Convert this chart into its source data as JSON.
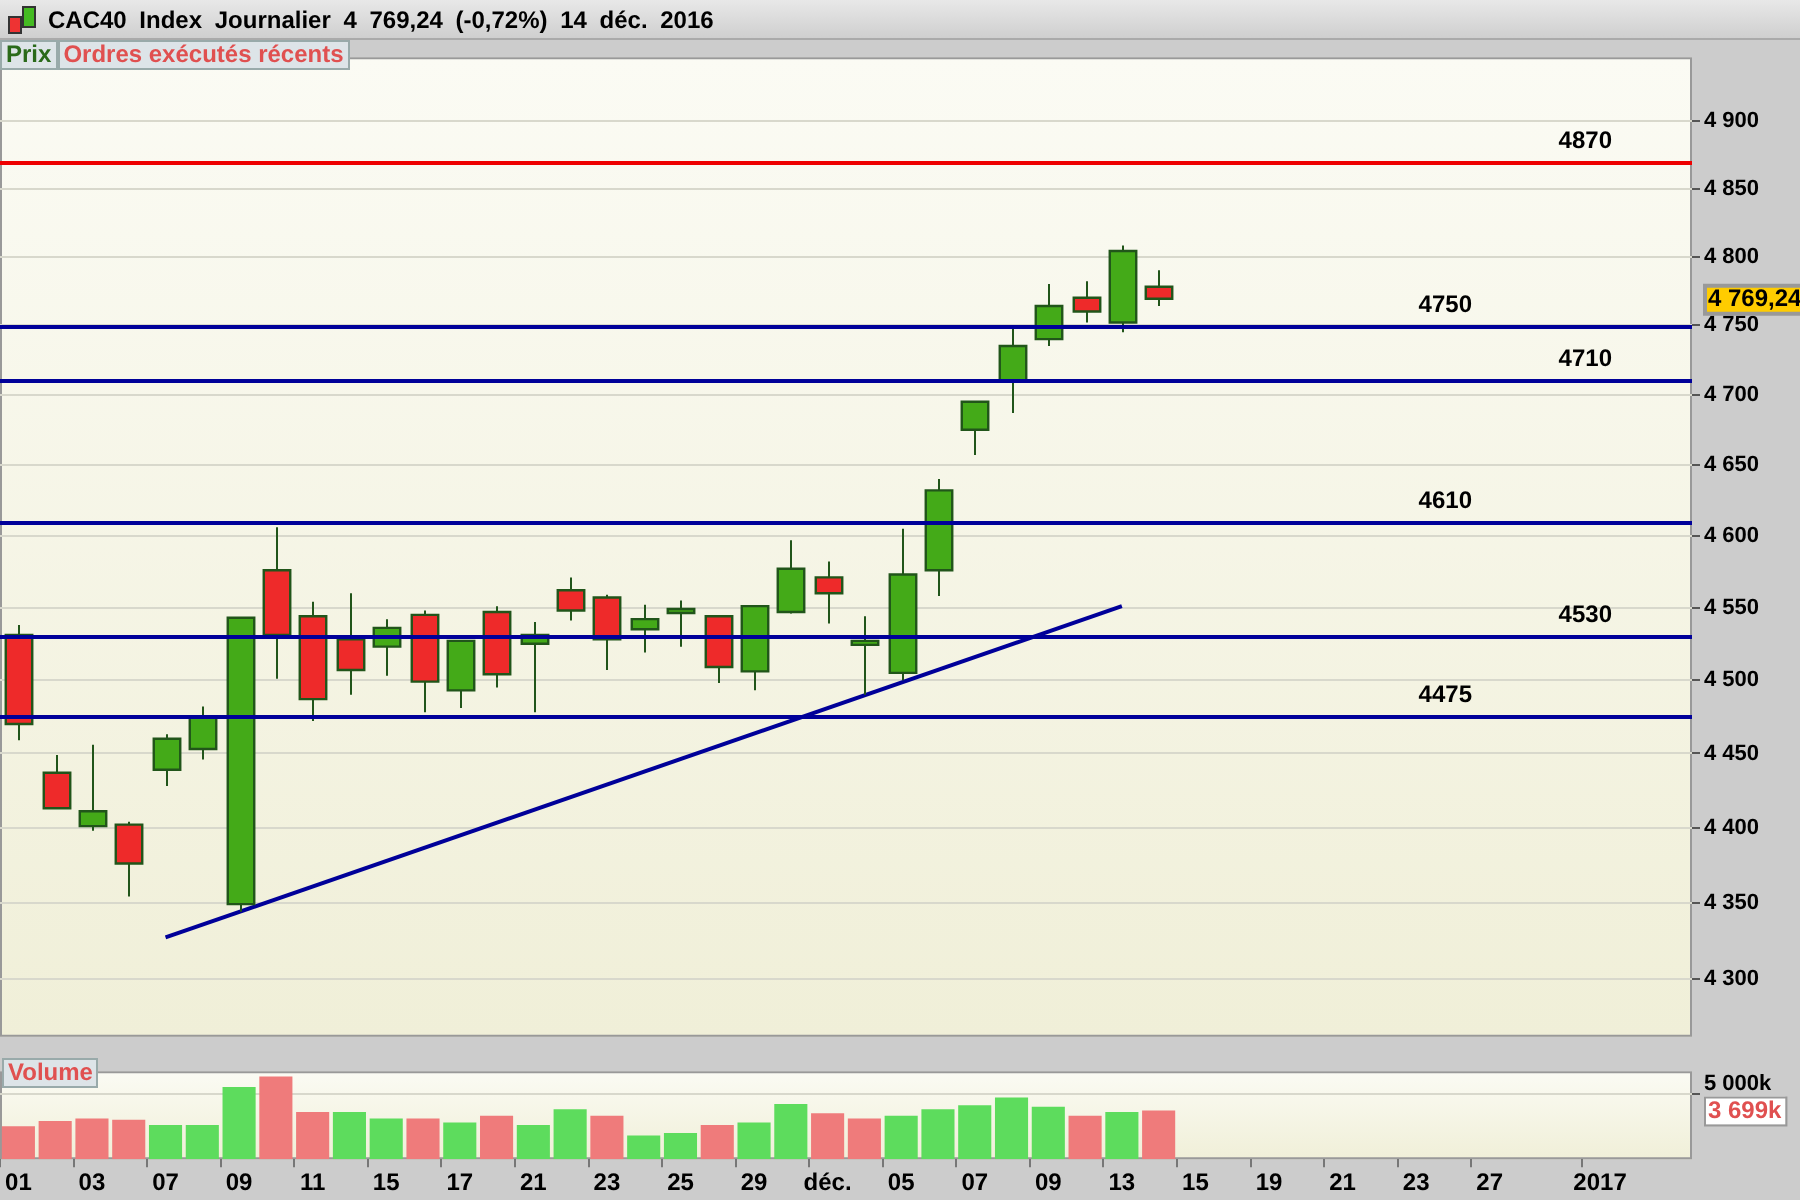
{
  "chart_data": [
    {
      "type": "candlestick",
      "title": "CAC40 Index Journalier 4 769,24 (-0,72%) 14 déc. 2016",
      "categories": [
        null,
        null,
        null,
        null,
        null,
        null,
        null,
        null,
        null,
        null,
        null,
        null,
        null,
        null,
        null,
        null,
        null,
        null,
        null,
        null,
        null,
        null,
        null,
        null,
        null,
        null,
        null,
        null,
        null,
        null,
        null,
        null,
        null,
        null,
        null,
        null,
        null,
        null,
        null,
        null,
        null,
        null,
        null,
        null,
        null,
        null
      ],
      "ohlc": [
        [
          4531,
          4538,
          4459,
          4470
        ],
        [
          4437,
          4449,
          4413,
          4413
        ],
        [
          4401,
          4456,
          4398,
          4411
        ],
        [
          4402,
          4404,
          4354,
          4376
        ],
        [
          4439,
          4463,
          4428,
          4460
        ],
        [
          4453,
          4482,
          4446,
          4475
        ],
        [
          4349,
          4543,
          4344,
          4543
        ],
        [
          4576,
          4606,
          4501,
          4531
        ],
        [
          4544,
          4554,
          4472,
          4487
        ],
        [
          4528,
          4560,
          4490,
          4507
        ],
        [
          4523,
          4542,
          4503,
          4536
        ],
        [
          4545,
          4548,
          4478,
          4499
        ],
        [
          4493,
          4527,
          4481,
          4527
        ],
        [
          4547,
          4551,
          4495,
          4504
        ],
        [
          4525,
          4540,
          4478,
          4531
        ],
        [
          4562,
          4571,
          4541,
          4548
        ],
        [
          4557,
          4559,
          4507,
          4528
        ],
        [
          4535,
          4552,
          4519,
          4542
        ],
        [
          4549,
          4555,
          4523,
          4549
        ],
        [
          4544,
          4544,
          4498,
          4509
        ],
        [
          4506,
          4551,
          4493,
          4551
        ],
        [
          4547,
          4597,
          4546,
          4577
        ],
        [
          4571,
          4582,
          4539,
          4560
        ],
        [
          4527,
          4544,
          4490,
          4527
        ],
        [
          4505,
          4605,
          4500,
          4573
        ],
        [
          4576,
          4640,
          4558,
          4632
        ],
        [
          4675,
          4695,
          4657,
          4695
        ],
        [
          4710,
          4749,
          4687,
          4735
        ],
        [
          4740,
          4780,
          4735,
          4764
        ],
        [
          4770,
          4782,
          4752,
          4760
        ],
        [
          4752,
          4808,
          4745,
          4804
        ],
        [
          4778,
          4790,
          4764,
          4769.24
        ],
        null,
        null,
        null,
        null,
        null,
        null,
        null,
        null,
        null,
        null,
        null,
        null,
        null,
        null
      ],
      "colors": [
        "#ee2a2a",
        "#ee2a2a",
        "#44aa18",
        "#ee2a2a",
        "#44aa18",
        "#44aa18",
        "#44aa18",
        "#ee2a2a",
        "#ee2a2a",
        "#ee2a2a",
        "#44aa18",
        "#ee2a2a",
        "#44aa18",
        "#ee2a2a",
        "#44aa18",
        "#ee2a2a",
        "#ee2a2a",
        "#44aa18",
        "#44aa18",
        "#ee2a2a",
        "#44aa18",
        "#44aa18",
        "#ee2a2a",
        "#44aa18",
        "#44aa18",
        "#44aa18",
        "#44aa18",
        "#44aa18",
        "#44aa18",
        "#ee2a2a",
        "#44aa18",
        "#ee2a2a",
        null,
        null,
        null,
        null,
        null,
        null,
        null,
        null,
        null,
        null,
        null,
        null,
        null,
        null
      ],
      "series": [
        {
          "type": "line",
          "color": "#000099",
          "values": [
            null,
            null,
            null,
            null,
            4327,
            null,
            null,
            null,
            null,
            null,
            null,
            null,
            null,
            null,
            null,
            null,
            null,
            null,
            null,
            null,
            null,
            null,
            null,
            null,
            null,
            null,
            null,
            null,
            null,
            null,
            4551,
            null,
            null,
            null,
            null,
            null,
            null,
            null,
            null,
            null,
            null,
            null,
            null,
            null,
            null,
            null
          ]
        }
      ],
      "log": true,
      "ylim": [
        4262,
        4948
      ],
      "yticks": [
        {
          "value": 4300,
          "label": "4 300"
        },
        {
          "value": 4350,
          "label": "4 350"
        },
        {
          "value": 4400,
          "label": "4 400"
        },
        {
          "value": 4450,
          "label": "4 450"
        },
        {
          "value": 4500,
          "label": "4 500"
        },
        {
          "value": 4550,
          "label": "4 550"
        },
        {
          "value": 4600,
          "label": "4 600"
        },
        {
          "value": 4650,
          "label": "4 650"
        },
        {
          "value": 4700,
          "label": "4 700"
        },
        {
          "value": 4750,
          "label": "4 750"
        },
        {
          "value": 4800,
          "label": "4 800"
        },
        {
          "value": 4850,
          "label": "4 850"
        },
        {
          "value": 4900,
          "label": "4 900"
        }
      ],
      "grid": "y",
      "tick_labels": "y",
      "ref_lines": [
        {
          "axis": "y",
          "value": 4870,
          "label": "4870",
          "color": "#ee0000"
        },
        {
          "axis": "y",
          "value": 4750,
          "label": "4750",
          "color": "#000099"
        },
        {
          "axis": "y",
          "value": 4710,
          "label": "4710",
          "color": "#000099"
        },
        {
          "axis": "y",
          "value": 4610,
          "label": "4610",
          "color": "#000099"
        },
        {
          "axis": "y",
          "value": 4530,
          "label": "4530",
          "color": "#000099"
        },
        {
          "axis": "y",
          "value": 4475,
          "label": "4475",
          "color": "#000099"
        }
      ],
      "annotations": [
        "Prix",
        "Ordres exécutés récents",
        "4 769,24"
      ]
    },
    {
      "type": "bar",
      "title": "Volume",
      "categories": [
        "01",
        null,
        "03",
        null,
        "07",
        null,
        "09",
        null,
        "11",
        null,
        "15",
        null,
        "17",
        null,
        "21",
        null,
        "23",
        null,
        "25",
        null,
        "29",
        null,
        "déc.",
        null,
        "05",
        null,
        "07",
        null,
        "09",
        null,
        "13",
        null,
        "15",
        null,
        "19",
        null,
        "21",
        null,
        "23",
        null,
        "27",
        null,
        null,
        "2017",
        null,
        null
      ],
      "values": [
        2500,
        2900,
        3100,
        3000,
        2600,
        2600,
        5500,
        6300,
        3600,
        3600,
        3100,
        3100,
        2800,
        3300,
        2600,
        3800,
        3300,
        1800,
        2000,
        2600,
        2800,
        4200,
        3500,
        3100,
        3300,
        3800,
        4100,
        4700,
        4000,
        3300,
        3600,
        3699,
        null,
        null,
        null,
        null,
        null,
        null,
        null,
        null,
        null,
        null,
        null,
        null,
        null,
        null
      ],
      "colors": [
        "#ef7b7b",
        "#ef7b7b",
        "#ef7b7b",
        "#ef7b7b",
        "#5ddc5d",
        "#5ddc5d",
        "#5ddc5d",
        "#ef7b7b",
        "#ef7b7b",
        "#5ddc5d",
        "#5ddc5d",
        "#ef7b7b",
        "#5ddc5d",
        "#ef7b7b",
        "#5ddc5d",
        "#5ddc5d",
        "#ef7b7b",
        "#5ddc5d",
        "#5ddc5d",
        "#ef7b7b",
        "#5ddc5d",
        "#5ddc5d",
        "#ef7b7b",
        "#ef7b7b",
        "#5ddc5d",
        "#5ddc5d",
        "#5ddc5d",
        "#5ddc5d",
        "#5ddc5d",
        "#ef7b7b",
        "#5ddc5d",
        "#ef7b7b",
        null,
        null,
        null,
        null,
        null,
        null,
        null,
        null,
        null,
        null,
        null,
        null,
        null,
        null
      ],
      "ylim": [
        0,
        6700
      ],
      "yticks": [
        {
          "value": 5000,
          "label": "5 000k"
        }
      ],
      "grid": "y",
      "annotations": [
        "3 699k"
      ]
    }
  ]
}
